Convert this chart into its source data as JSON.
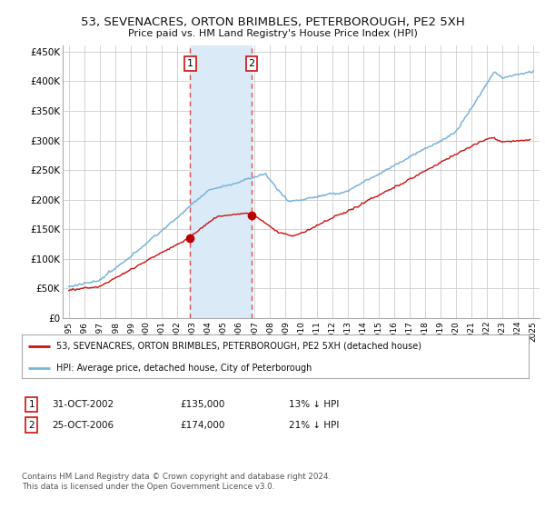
{
  "title": "53, SEVENACRES, ORTON BRIMBLES, PETERBOROUGH, PE2 5XH",
  "subtitle": "Price paid vs. HM Land Registry's House Price Index (HPI)",
  "ylabel_ticks": [
    "£0",
    "£50K",
    "£100K",
    "£150K",
    "£200K",
    "£250K",
    "£300K",
    "£350K",
    "£400K",
    "£450K"
  ],
  "ytick_values": [
    0,
    50000,
    100000,
    150000,
    200000,
    250000,
    300000,
    350000,
    400000,
    450000
  ],
  "background_color": "#ffffff",
  "grid_color": "#cccccc",
  "sale1_date": 2002.83,
  "sale1_price": 135000,
  "sale2_date": 2006.81,
  "sale2_price": 174000,
  "vspan_color": "#daeaf7",
  "vline_color": "#e05050",
  "legend_label_red": "53, SEVENACRES, ORTON BRIMBLES, PETERBOROUGH, PE2 5XH (detached house)",
  "legend_label_blue": "HPI: Average price, detached house, City of Peterborough",
  "table_row1": [
    "1",
    "31-OCT-2002",
    "£135,000",
    "13% ↓ HPI"
  ],
  "table_row2": [
    "2",
    "25-OCT-2006",
    "£174,000",
    "21% ↓ HPI"
  ],
  "footer": "Contains HM Land Registry data © Crown copyright and database right 2024.\nThis data is licensed under the Open Government Licence v3.0."
}
